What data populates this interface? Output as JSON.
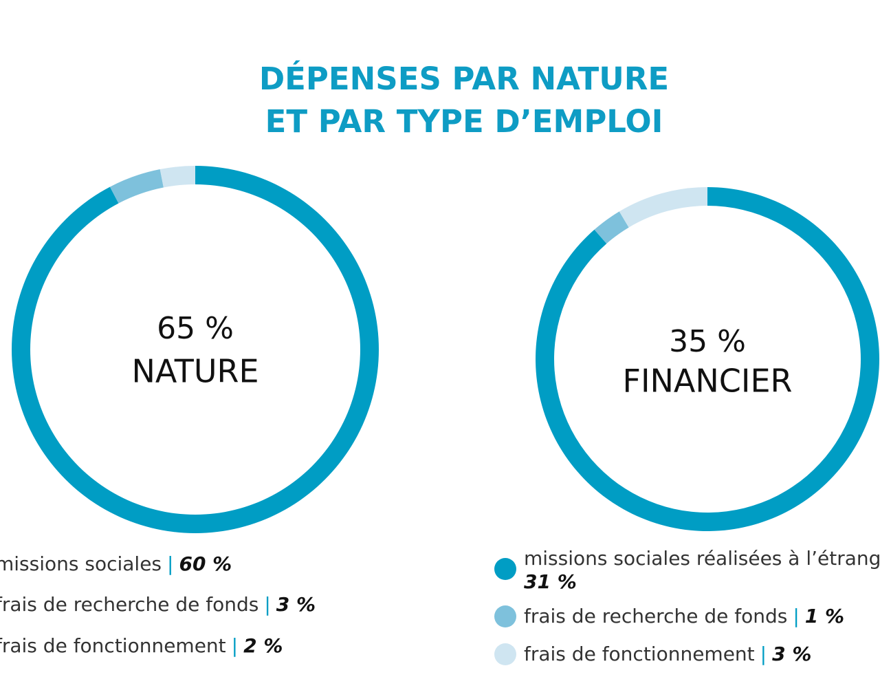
{
  "title": {
    "line1": "DÉPENSES PAR NATURE",
    "line2": "ET PAR TYPE D’EMPLOI"
  },
  "colors": {
    "title": "#0e9cc4",
    "dark": "#009dc4",
    "medium": "#7ec1dc",
    "light": "#cfe5f1",
    "separator": "#009dc4"
  },
  "chart_data": [
    {
      "type": "pie",
      "variant": "donut",
      "center_value": "65 %",
      "center_label": "NATURE",
      "slices": [
        {
          "label": "missions sociales",
          "value": 60,
          "value_text": "60 %",
          "color": "#009dc4"
        },
        {
          "label": "frais de recherche de fonds",
          "value": 3,
          "value_text": "3 %",
          "color": "#7ec1dc"
        },
        {
          "label": "frais de fonctionnement",
          "value": 2,
          "value_text": "2 %",
          "color": "#cfe5f1"
        }
      ]
    },
    {
      "type": "pie",
      "variant": "donut",
      "center_value": "35 %",
      "center_label": "FINANCIER",
      "slices": [
        {
          "label": "missions sociales réalisées à l’étrang",
          "value": 31,
          "value_text": "31 %",
          "color": "#009dc4"
        },
        {
          "label": "frais de recherche de fonds",
          "value": 1,
          "value_text": "1 %",
          "color": "#7ec1dc"
        },
        {
          "label": "frais de fonctionnement",
          "value": 3,
          "value_text": "3 %",
          "color": "#cfe5f1"
        }
      ]
    }
  ]
}
